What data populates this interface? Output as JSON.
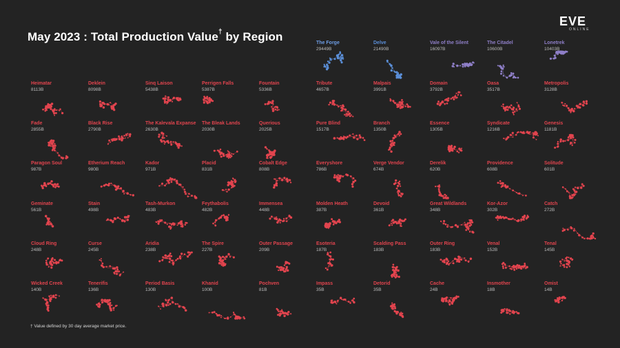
{
  "title": "May 2023 : Total Production Value",
  "title_mark": "†",
  "title_suffix": "by Region",
  "logo": {
    "main": "EVE",
    "sub": "ONLINE"
  },
  "footnote": "† Value defined by 30 day average market price.",
  "colors": {
    "background": "#232323",
    "top_regions": "#5b8fd8",
    "top_regions_alt": "#8f7fc8",
    "regions": "#e2444e",
    "name_top": "#6e9ee6",
    "name_default": "#e2444e"
  },
  "chart_data": {
    "type": "table",
    "title": "May 2023 : Total Production Value† by Region",
    "unit": "B",
    "top_regions": [
      {
        "name": "The Forge",
        "value": "29449B"
      },
      {
        "name": "Delve",
        "value": "21490B"
      },
      {
        "name": "Vale of the Silent",
        "value": "16097B"
      },
      {
        "name": "The Citadel",
        "value": "10600B"
      },
      {
        "name": "Lonetrek",
        "value": "10403B"
      }
    ],
    "regions": [
      {
        "name": "Heimatar",
        "value": "8113B"
      },
      {
        "name": "Deklein",
        "value": "8098B"
      },
      {
        "name": "Sinq Laison",
        "value": "5438B"
      },
      {
        "name": "Perrigen Falls",
        "value": "5387B"
      },
      {
        "name": "Fountain",
        "value": "5336B"
      },
      {
        "name": "Tribute",
        "value": "4657B"
      },
      {
        "name": "Malpais",
        "value": "3991B"
      },
      {
        "name": "Domain",
        "value": "3792B"
      },
      {
        "name": "Oasa",
        "value": "3517B"
      },
      {
        "name": "Metropolis",
        "value": "3128B"
      },
      {
        "name": "Fade",
        "value": "2855B"
      },
      {
        "name": "Black Rise",
        "value": "2790B"
      },
      {
        "name": "The Kalevala Expanse",
        "value": "2630B"
      },
      {
        "name": "The Bleak Lands",
        "value": "2030B"
      },
      {
        "name": "Querious",
        "value": "2025B"
      },
      {
        "name": "Pure Blind",
        "value": "1517B"
      },
      {
        "name": "Branch",
        "value": "1350B"
      },
      {
        "name": "Essence",
        "value": "1305B"
      },
      {
        "name": "Syndicate",
        "value": "1216B"
      },
      {
        "name": "Genesis",
        "value": "1181B"
      },
      {
        "name": "Paragon Soul",
        "value": "987B"
      },
      {
        "name": "Etherium Reach",
        "value": "980B"
      },
      {
        "name": "Kador",
        "value": "971B"
      },
      {
        "name": "Placid",
        "value": "831B"
      },
      {
        "name": "Cobalt Edge",
        "value": "808B"
      },
      {
        "name": "Everyshore",
        "value": "786B"
      },
      {
        "name": "Verge Vendor",
        "value": "674B"
      },
      {
        "name": "Derelik",
        "value": "620B"
      },
      {
        "name": "Providence",
        "value": "608B"
      },
      {
        "name": "Solitude",
        "value": "601B"
      },
      {
        "name": "Geminate",
        "value": "561B"
      },
      {
        "name": "Stain",
        "value": "498B"
      },
      {
        "name": "Tash-Murkon",
        "value": "483B"
      },
      {
        "name": "Feythabolis",
        "value": "482B"
      },
      {
        "name": "Immensea",
        "value": "448B"
      },
      {
        "name": "Molden Heath",
        "value": "387B"
      },
      {
        "name": "Devoid",
        "value": "361B"
      },
      {
        "name": "Great Wildlands",
        "value": "348B"
      },
      {
        "name": "Kor-Azor",
        "value": "302B"
      },
      {
        "name": "Catch",
        "value": "272B"
      },
      {
        "name": "Cloud Ring",
        "value": "248B"
      },
      {
        "name": "Curse",
        "value": "245B"
      },
      {
        "name": "Aridia",
        "value": "238B"
      },
      {
        "name": "The Spire",
        "value": "227B"
      },
      {
        "name": "Outer Passage",
        "value": "209B"
      },
      {
        "name": "Esoteria",
        "value": "187B"
      },
      {
        "name": "Scalding Pass",
        "value": "183B"
      },
      {
        "name": "Outer Ring",
        "value": "183B"
      },
      {
        "name": "Venal",
        "value": "152B"
      },
      {
        "name": "Tenal",
        "value": "145B"
      },
      {
        "name": "Wicked Creek",
        "value": "140B"
      },
      {
        "name": "Tenerifis",
        "value": "136B"
      },
      {
        "name": "Period Basis",
        "value": "130B"
      },
      {
        "name": "Khanid",
        "value": "100B"
      },
      {
        "name": "Pochven",
        "value": "81B"
      },
      {
        "name": "Impass",
        "value": "35B"
      },
      {
        "name": "Detorid",
        "value": "35B"
      },
      {
        "name": "Cache",
        "value": "24B"
      },
      {
        "name": "Insmother",
        "value": "18B"
      },
      {
        "name": "Omist",
        "value": "14B"
      }
    ]
  }
}
